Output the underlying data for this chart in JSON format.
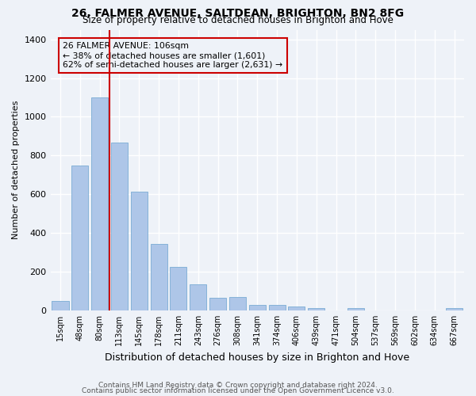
{
  "title_line1": "26, FALMER AVENUE, SALTDEAN, BRIGHTON, BN2 8FG",
  "title_line2": "Size of property relative to detached houses in Brighton and Hove",
  "xlabel": "Distribution of detached houses by size in Brighton and Hove",
  "ylabel": "Number of detached properties",
  "categories": [
    "15sqm",
    "48sqm",
    "80sqm",
    "113sqm",
    "145sqm",
    "178sqm",
    "211sqm",
    "243sqm",
    "276sqm",
    "308sqm",
    "341sqm",
    "374sqm",
    "406sqm",
    "439sqm",
    "471sqm",
    "504sqm",
    "537sqm",
    "569sqm",
    "602sqm",
    "634sqm",
    "667sqm"
  ],
  "values": [
    50,
    750,
    1100,
    865,
    615,
    345,
    225,
    135,
    65,
    70,
    30,
    30,
    22,
    12,
    0,
    10,
    0,
    0,
    0,
    0,
    10
  ],
  "bar_color": "#aec6e8",
  "bar_edgecolor": "#7aacd4",
  "vline_index": 2,
  "vline_color": "#cc0000",
  "annotation_text": "26 FALMER AVENUE: 106sqm\n← 38% of detached houses are smaller (1,601)\n62% of semi-detached houses are larger (2,631) →",
  "annotation_box_edgecolor": "#cc0000",
  "ylim": [
    0,
    1450
  ],
  "yticks": [
    0,
    200,
    400,
    600,
    800,
    1000,
    1200,
    1400
  ],
  "footer_line1": "Contains HM Land Registry data © Crown copyright and database right 2024.",
  "footer_line2": "Contains public sector information licensed under the Open Government Licence v3.0.",
  "bg_color": "#eef2f8",
  "grid_color": "#ffffff"
}
